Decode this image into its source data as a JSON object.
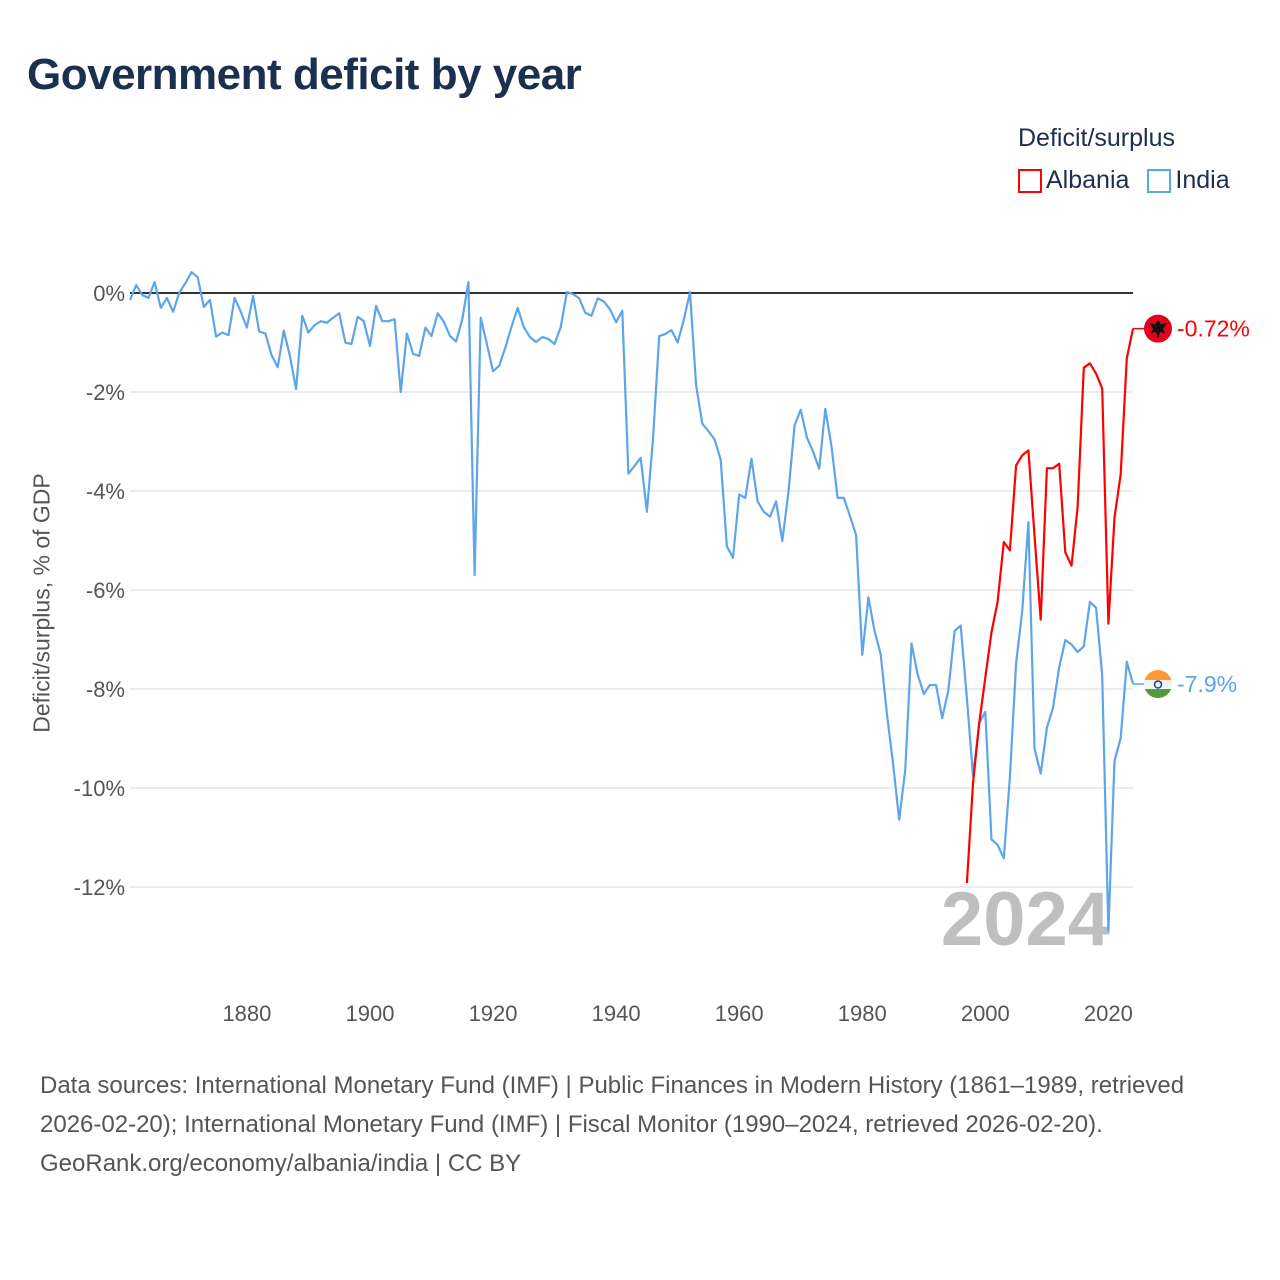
{
  "title": "Government deficit by year",
  "legend": {
    "title": "Deficit/surplus",
    "items": [
      {
        "label": "Albania",
        "color": "#ff0000"
      },
      {
        "label": "India",
        "color": "#5da5ea"
      }
    ]
  },
  "chart_data": {
    "type": "line",
    "title": "Government deficit by year",
    "xlabel": "",
    "ylabel": "Deficit/surplus, % of GDP",
    "xlim": [
      1861,
      2024
    ],
    "ylim": [
      -13,
      0.55
    ],
    "grid": true,
    "legend_placement": "top-right",
    "current_year_label": "2024",
    "x_ticks": [
      1880,
      1900,
      1920,
      1940,
      1960,
      1980,
      2000,
      2020
    ],
    "x_tick_labels": [
      "1880",
      "1900",
      "1920",
      "1940",
      "1960",
      "1980",
      "2000",
      "2020"
    ],
    "y_ticks": [
      0,
      -2,
      -4,
      -6,
      -8,
      -10,
      -12
    ],
    "y_tick_labels": [
      "0%",
      "-2%",
      "-4%",
      "-6%",
      "-8%",
      "-10%",
      "-12%"
    ],
    "series": [
      {
        "name": "India",
        "color": "#5da5ea",
        "start_year": 1861,
        "end_label": "-7.9%",
        "flag": "india-flag",
        "values": [
          -0.14,
          0.16,
          -0.04,
          -0.1,
          0.22,
          -0.3,
          -0.1,
          -0.38,
          0,
          0.2,
          0.42,
          0.32,
          -0.28,
          -0.14,
          -0.88,
          -0.8,
          -0.85,
          -0.1,
          -0.38,
          -0.7,
          -0.06,
          -0.78,
          -0.82,
          -1.25,
          -1.5,
          -0.76,
          -1.28,
          -1.94,
          -0.46,
          -0.8,
          -0.65,
          -0.57,
          -0.6,
          -0.5,
          -0.41,
          -1.0,
          -1.03,
          -0.48,
          -0.57,
          -1.07,
          -0.26,
          -0.57,
          -0.57,
          -0.53,
          -2.0,
          -0.82,
          -1.23,
          -1.27,
          -0.7,
          -0.87,
          -0.41,
          -0.58,
          -0.87,
          -0.98,
          -0.53,
          0.22,
          -5.7,
          -0.5,
          -1.03,
          -1.58,
          -1.47,
          -1.1,
          -0.68,
          -0.3,
          -0.69,
          -0.89,
          -0.99,
          -0.89,
          -0.93,
          -1.03,
          -0.69,
          0.02,
          -0.02,
          -0.11,
          -0.4,
          -0.46,
          -0.11,
          -0.17,
          -0.33,
          -0.59,
          -0.36,
          -3.65,
          -3.49,
          -3.33,
          -4.42,
          -2.95,
          -0.87,
          -0.83,
          -0.75,
          -1.0,
          -0.54,
          0.02,
          -1.86,
          -2.64,
          -2.79,
          -2.96,
          -3.37,
          -5.12,
          -5.35,
          -4.07,
          -4.14,
          -3.35,
          -4.21,
          -4.42,
          -4.52,
          -4.21,
          -5.01,
          -4.03,
          -2.67,
          -2.36,
          -2.92,
          -3.2,
          -3.55,
          -2.34,
          -3.1,
          -4.14,
          -4.14,
          -4.5,
          -4.89,
          -7.31,
          -6.15,
          -6.83,
          -7.3,
          -8.5,
          -9.5,
          -10.64,
          -9.62,
          -7.08,
          -7.7,
          -8.1,
          -7.92,
          -7.92,
          -8.59,
          -8.02,
          -6.83,
          -6.72,
          -8.19,
          -9.76,
          -8.69,
          -8.46,
          -11.04,
          -11.15,
          -11.42,
          -9.78,
          -7.48,
          -6.43,
          -4.63,
          -9.2,
          -9.71,
          -8.78,
          -8.38,
          -7.56,
          -7.01,
          -7.1,
          -7.25,
          -7.14,
          -6.24,
          -6.36,
          -7.73,
          -12.88,
          -9.45,
          -8.99,
          -7.45,
          -7.9
        ]
      },
      {
        "name": "Albania",
        "color": "#ff0000",
        "start_year": 1997,
        "end_label": "-0.72%",
        "flag": "albania-flag",
        "values": [
          -11.92,
          -9.91,
          -8.69,
          -7.77,
          -6.85,
          -6.24,
          -5.03,
          -5.2,
          -3.48,
          -3.28,
          -3.18,
          -4.9,
          -6.6,
          -3.54,
          -3.54,
          -3.45,
          -5.24,
          -5.51,
          -4.33,
          -1.51,
          -1.42,
          -1.63,
          -1.93,
          -6.68,
          -4.54,
          -3.66,
          -1.32,
          -0.72
        ]
      }
    ]
  },
  "footer": {
    "sources": "Data sources: International Monetary Fund (IMF) | Public Finances in Modern History (1861–1989, retrieved 2026-02-20); International Monetary Fund (IMF) | Fiscal Monitor (1990–2024, retrieved 2026-02-20).",
    "credit": "GeoRank.org/economy/albania/india | CC BY"
  }
}
